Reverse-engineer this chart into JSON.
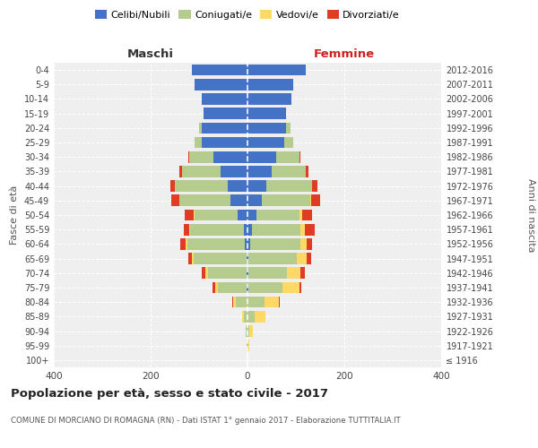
{
  "age_groups": [
    "100+",
    "95-99",
    "90-94",
    "85-89",
    "80-84",
    "75-79",
    "70-74",
    "65-69",
    "60-64",
    "55-59",
    "50-54",
    "45-49",
    "40-44",
    "35-39",
    "30-34",
    "25-29",
    "20-24",
    "15-19",
    "10-14",
    "5-9",
    "0-4"
  ],
  "birth_years": [
    "≤ 1916",
    "1917-1921",
    "1922-1926",
    "1927-1931",
    "1932-1936",
    "1937-1941",
    "1942-1946",
    "1947-1951",
    "1952-1956",
    "1957-1961",
    "1962-1966",
    "1967-1971",
    "1972-1976",
    "1977-1981",
    "1982-1986",
    "1987-1991",
    "1992-1996",
    "1997-2001",
    "2002-2006",
    "2007-2011",
    "2012-2016"
  ],
  "males": {
    "celibi": [
      0,
      0,
      0,
      0,
      0,
      2,
      2,
      2,
      5,
      8,
      20,
      35,
      40,
      55,
      70,
      95,
      95,
      90,
      95,
      110,
      115
    ],
    "coniugati": [
      0,
      1,
      3,
      8,
      25,
      60,
      80,
      110,
      120,
      110,
      90,
      105,
      110,
      80,
      50,
      15,
      5,
      0,
      0,
      0,
      0
    ],
    "vedovi": [
      0,
      0,
      1,
      3,
      5,
      5,
      5,
      3,
      3,
      2,
      2,
      0,
      0,
      0,
      0,
      0,
      0,
      0,
      0,
      0,
      0
    ],
    "divorziati": [
      0,
      0,
      0,
      0,
      2,
      5,
      8,
      8,
      10,
      12,
      18,
      18,
      10,
      5,
      2,
      0,
      0,
      0,
      0,
      0,
      0
    ]
  },
  "females": {
    "nubili": [
      0,
      0,
      0,
      0,
      0,
      2,
      2,
      2,
      5,
      10,
      18,
      30,
      38,
      50,
      60,
      75,
      80,
      80,
      90,
      95,
      120
    ],
    "coniugate": [
      0,
      1,
      4,
      15,
      35,
      70,
      80,
      100,
      105,
      100,
      90,
      100,
      95,
      70,
      48,
      20,
      8,
      0,
      0,
      0,
      0
    ],
    "vedove": [
      0,
      3,
      8,
      22,
      30,
      35,
      28,
      20,
      12,
      8,
      5,
      2,
      0,
      0,
      0,
      0,
      0,
      0,
      0,
      0,
      0
    ],
    "divorziate": [
      0,
      0,
      0,
      0,
      2,
      5,
      8,
      10,
      12,
      20,
      20,
      18,
      12,
      5,
      2,
      0,
      0,
      0,
      0,
      0,
      0
    ]
  },
  "colors": {
    "celibi": "#4472c4",
    "coniugati": "#b5cc8e",
    "vedovi": "#ffd966",
    "divorziati": "#e03b24"
  },
  "xlim": 400,
  "title": "Popolazione per età, sesso e stato civile - 2017",
  "subtitle": "COMUNE DI MORCIANO DI ROMAGNA (RN) - Dati ISTAT 1° gennaio 2017 - Elaborazione TUTTITALIA.IT",
  "ylabel_left": "Fasce di età",
  "ylabel_right": "Anni di nascita",
  "legend_labels": [
    "Celibi/Nubili",
    "Coniugati/e",
    "Vedovi/e",
    "Divorziati/e"
  ],
  "maschi_label": "Maschi",
  "femmine_label": "Femmine"
}
